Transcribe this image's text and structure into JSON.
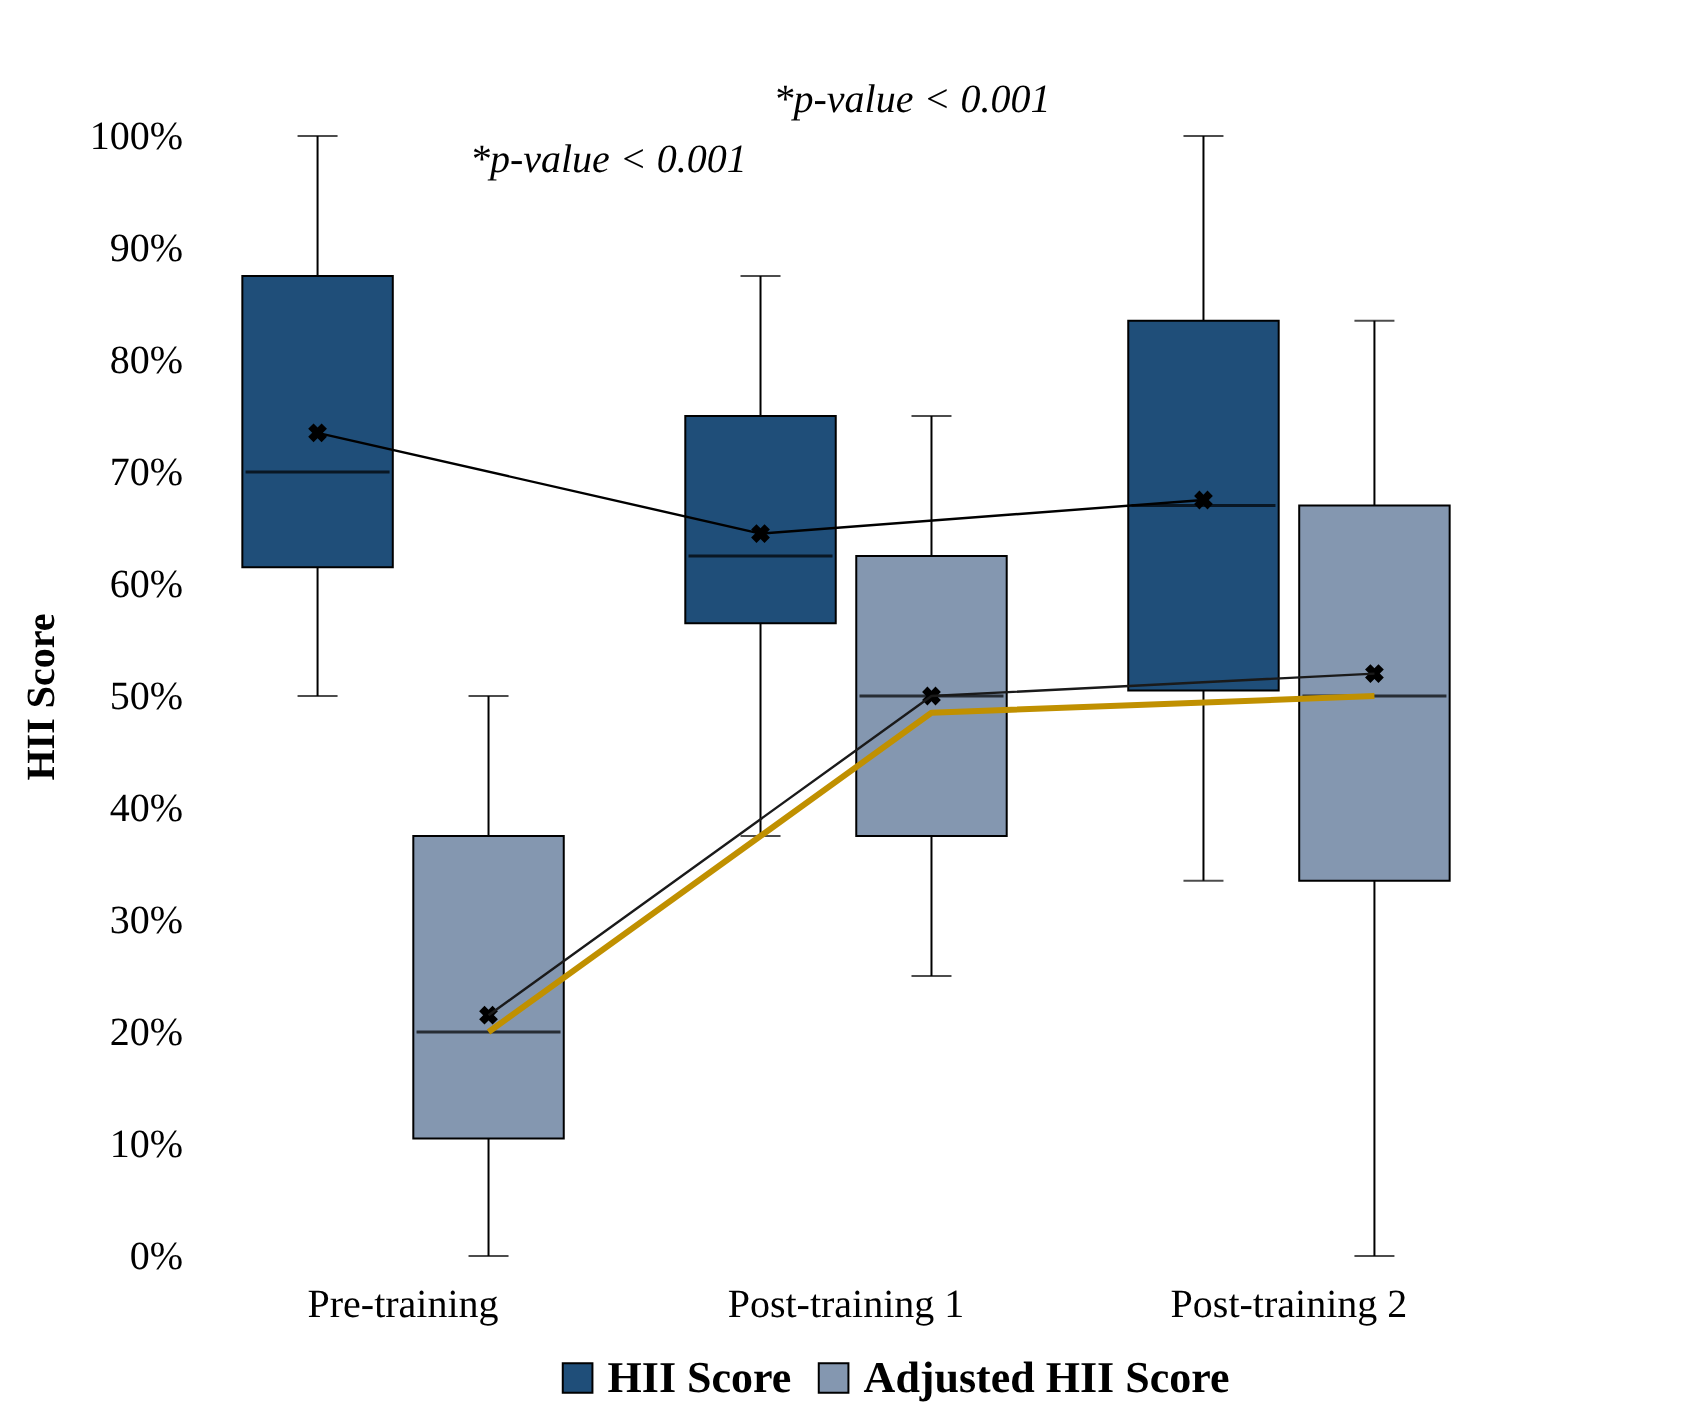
{
  "chart_data": {
    "type": "box",
    "ylabel": "HII Score",
    "categories": [
      "Pre-training",
      "Post-training 1",
      "Post-training 2"
    ],
    "ylim": [
      0,
      100
    ],
    "yticks": [
      {
        "value": 0,
        "label": "0%"
      },
      {
        "value": 10,
        "label": "10%"
      },
      {
        "value": 20,
        "label": "20%"
      },
      {
        "value": 30,
        "label": "30%"
      },
      {
        "value": 40,
        "label": "40%"
      },
      {
        "value": 50,
        "label": "50%"
      },
      {
        "value": 60,
        "label": "60%"
      },
      {
        "value": 70,
        "label": "70%"
      },
      {
        "value": 80,
        "label": "80%"
      },
      {
        "value": 90,
        "label": "90%"
      },
      {
        "value": 100,
        "label": "100%"
      }
    ],
    "grid": false,
    "legend": "bottom",
    "series": [
      {
        "name": "HII Score",
        "color": "#1f4e79",
        "boxes": [
          {
            "low": 50,
            "q1": 61.5,
            "median": 70,
            "q3": 87.5,
            "high": 100,
            "mean": 73.5
          },
          {
            "low": 37.5,
            "q1": 56.5,
            "median": 62.5,
            "q3": 75,
            "high": 87.5,
            "mean": 64.5
          },
          {
            "low": 33.5,
            "q1": 50.5,
            "median": 67,
            "q3": 83.5,
            "high": 100,
            "mean": 67.5
          }
        ]
      },
      {
        "name": "Adjusted HII Score",
        "color": "#8497b0",
        "boxes": [
          {
            "low": 0,
            "q1": 10.5,
            "median": 20,
            "q3": 37.5,
            "high": 50,
            "mean": 21.5
          },
          {
            "low": 25,
            "q1": 37.5,
            "median": 50,
            "q3": 62.5,
            "high": 75,
            "mean": 50
          },
          {
            "low": 0,
            "q1": 33.5,
            "median": 50,
            "q3": 67,
            "high": 83.5,
            "mean": 52
          }
        ]
      },
      {
        "type": "line",
        "color": "#000000",
        "x": [
          "Pre-training",
          "Post-training 1",
          "Post-training 2"
        ],
        "values": [
          73.5,
          64.5,
          67.5
        ]
      },
      {
        "type": "line",
        "color": "#1a1a1a",
        "x": [
          "Pre-training",
          "Post-training 1",
          "Post-training 2"
        ],
        "values": [
          21.5,
          50,
          52
        ]
      },
      {
        "type": "line",
        "color": "#c09000",
        "x": [
          "Pre-training",
          "Post-training 1",
          "Post-training 2"
        ],
        "values": [
          20,
          48.5,
          50
        ]
      }
    ],
    "annotations": [
      "*p-value < 0.001",
      "*p-value < 0.001"
    ]
  }
}
